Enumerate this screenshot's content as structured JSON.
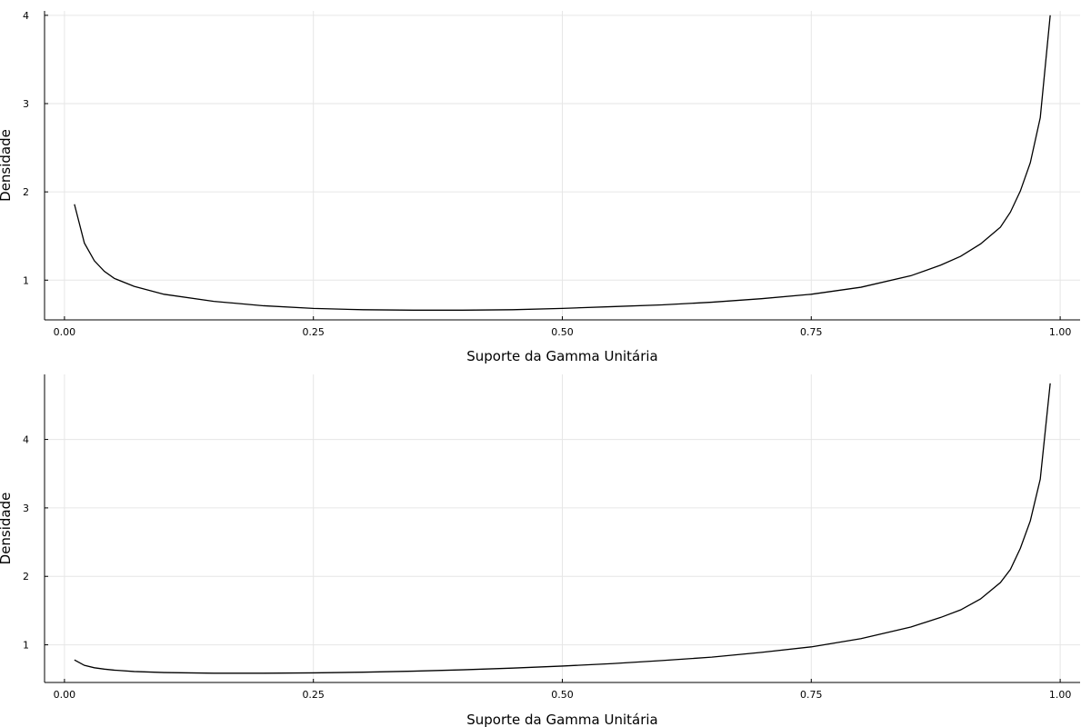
{
  "chart_data": [
    {
      "type": "line",
      "xlabel": "Suporte da Gamma Unitária",
      "ylabel": "Densidade",
      "xlim": [
        -0.02,
        1.02
      ],
      "ylim": [
        0.55,
        4.05
      ],
      "xticks": [
        0.0,
        0.25,
        0.5,
        0.75,
        1.0
      ],
      "xtick_labels": [
        "0.00",
        "0.25",
        "0.50",
        "0.75",
        "1.00"
      ],
      "yticks": [
        1,
        2,
        3,
        4
      ],
      "ytick_labels": [
        "1",
        "2",
        "3",
        "4"
      ],
      "grid": true,
      "legend": "none",
      "series": [
        {
          "color": "#000000",
          "x": [
            0.01,
            0.02,
            0.03,
            0.04,
            0.05,
            0.07,
            0.1,
            0.15,
            0.2,
            0.25,
            0.3,
            0.35,
            0.4,
            0.45,
            0.5,
            0.55,
            0.6,
            0.65,
            0.7,
            0.75,
            0.8,
            0.85,
            0.88,
            0.9,
            0.92,
            0.94,
            0.95,
            0.96,
            0.97,
            0.98,
            0.99
          ],
          "y": [
            1.86,
            1.42,
            1.22,
            1.1,
            1.02,
            0.93,
            0.84,
            0.76,
            0.71,
            0.68,
            0.665,
            0.66,
            0.66,
            0.665,
            0.68,
            0.7,
            0.72,
            0.75,
            0.79,
            0.84,
            0.92,
            1.05,
            1.17,
            1.27,
            1.41,
            1.6,
            1.77,
            2.01,
            2.33,
            2.84,
            4.0
          ]
        }
      ]
    },
    {
      "type": "line",
      "xlabel": "Suporte da Gamma Unitária",
      "ylabel": "Densidade",
      "xlim": [
        -0.02,
        1.02
      ],
      "ylim": [
        0.45,
        4.95
      ],
      "xticks": [
        0.0,
        0.25,
        0.5,
        0.75,
        1.0
      ],
      "xtick_labels": [
        "0.00",
        "0.25",
        "0.50",
        "0.75",
        "1.00"
      ],
      "yticks": [
        1,
        2,
        3,
        4
      ],
      "ytick_labels": [
        "1",
        "2",
        "3",
        "4"
      ],
      "grid": true,
      "legend": "none",
      "series": [
        {
          "color": "#000000",
          "x": [
            0.01,
            0.02,
            0.03,
            0.04,
            0.05,
            0.07,
            0.1,
            0.15,
            0.2,
            0.25,
            0.3,
            0.35,
            0.4,
            0.45,
            0.5,
            0.55,
            0.6,
            0.65,
            0.7,
            0.75,
            0.8,
            0.85,
            0.88,
            0.9,
            0.92,
            0.94,
            0.95,
            0.96,
            0.97,
            0.98,
            0.99
          ],
          "y": [
            0.78,
            0.7,
            0.665,
            0.645,
            0.63,
            0.61,
            0.595,
            0.585,
            0.585,
            0.59,
            0.6,
            0.615,
            0.635,
            0.66,
            0.69,
            0.725,
            0.77,
            0.82,
            0.89,
            0.97,
            1.09,
            1.26,
            1.4,
            1.51,
            1.67,
            1.91,
            2.1,
            2.41,
            2.81,
            3.42,
            4.82
          ]
        }
      ]
    }
  ]
}
